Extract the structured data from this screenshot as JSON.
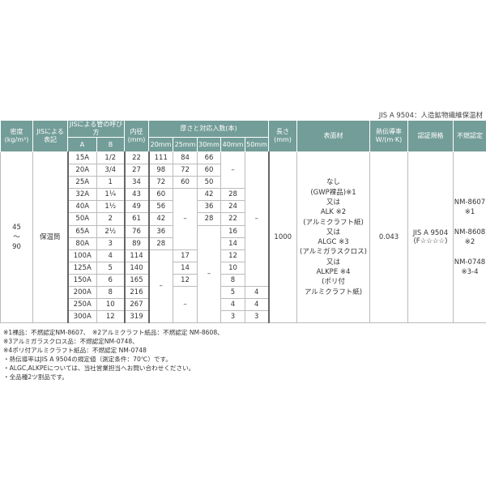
{
  "caption": "JIS A 9504：人造鉱物繊維保温材",
  "header": {
    "density": "密度\n(kg/m³)",
    "jis_label": "JISによる\n表記",
    "pipe_name": "JISによる管の呼び方",
    "col_a": "A",
    "col_b": "B",
    "inner_dia": "内径\n(mm)",
    "thickness": "厚さと対応入数(本)",
    "thicknesses": [
      "20mm",
      "25mm",
      "30mm",
      "40mm",
      "50mm"
    ],
    "length": "長さ\n(mm)",
    "surface": "表面材",
    "conductivity": "熱伝導率\nW/(m·K)",
    "certification": "認証規格",
    "nonflammable": "不燃認定"
  },
  "rows": [
    [
      {
        "t": "45\n〜\n90",
        "rs": 14,
        "big": true
      },
      {
        "t": "保温筒",
        "rs": 14
      },
      {
        "t": "15A",
        "k": 1
      },
      {
        "t": "1/2"
      },
      {
        "t": "22",
        "k": 1
      },
      {
        "t": "111",
        "k": 1
      },
      {
        "t": "84"
      },
      {
        "t": "66"
      },
      {
        "t": "–",
        "rs": 3
      },
      {
        "t": "–",
        "rs": 11
      },
      {
        "t": "1000",
        "rs": 14,
        "k": 1
      },
      {
        "t": "なし\n(GWP裸品)※1\n又は\nALK ※2\n(アルミクラフト紙)\n又は\nALGC ※3\n(アルミガラスクロス)\n又は\nALKPE ※4\n(ポリ付\nアルミクラフト紙)",
        "rs": 14,
        "big": true
      },
      {
        "t": "0.043",
        "rs": 14
      },
      {
        "t": "JIS A 9504\n(F☆☆☆☆)",
        "rs": 14
      },
      {
        "t": "NM-8607\n※1\n\nNM-8608\n※2\n\nNM-0748\n※3-4",
        "rs": 14,
        "big": true
      }
    ],
    [
      {
        "t": "20A",
        "k": 1
      },
      {
        "t": "3/4"
      },
      {
        "t": "27",
        "k": 1
      },
      {
        "t": "98",
        "k": 1
      },
      {
        "t": "72"
      },
      {
        "t": "60"
      }
    ],
    [
      {
        "t": "25A",
        "k": 1
      },
      {
        "t": "1"
      },
      {
        "t": "34",
        "k": 1
      },
      {
        "t": "72",
        "k": 1
      },
      {
        "t": "60"
      },
      {
        "t": "50"
      }
    ],
    [
      {
        "t": "32A",
        "k": 1
      },
      {
        "t": "1¼"
      },
      {
        "t": "43",
        "k": 1
      },
      {
        "t": "60",
        "k": 1
      },
      {
        "t": "–",
        "rs": 5
      },
      {
        "t": "42"
      },
      {
        "t": "28"
      }
    ],
    [
      {
        "t": "40A",
        "k": 1
      },
      {
        "t": "1½"
      },
      {
        "t": "49",
        "k": 1
      },
      {
        "t": "56",
        "k": 1
      },
      {
        "t": "36"
      },
      {
        "t": "24"
      }
    ],
    [
      {
        "t": "50A",
        "k": 1
      },
      {
        "t": "2"
      },
      {
        "t": "61",
        "k": 1
      },
      {
        "t": "42",
        "k": 1
      },
      {
        "t": "28"
      },
      {
        "t": "22"
      }
    ],
    [
      {
        "t": "65A",
        "k": 1
      },
      {
        "t": "2½"
      },
      {
        "t": "76",
        "k": 1
      },
      {
        "t": "36",
        "k": 1
      },
      {
        "t": "–",
        "rs": 8
      },
      {
        "t": "16"
      }
    ],
    [
      {
        "t": "80A",
        "k": 1
      },
      {
        "t": "3"
      },
      {
        "t": "89",
        "k": 1
      },
      {
        "t": "28",
        "k": 1
      },
      {
        "t": "14"
      }
    ],
    [
      {
        "t": "100A",
        "k": 1
      },
      {
        "t": "4"
      },
      {
        "t": "114",
        "k": 1
      },
      {
        "t": "–",
        "rs": 6,
        "k": 1
      },
      {
        "t": "17"
      },
      {
        "t": "12"
      }
    ],
    [
      {
        "t": "125A",
        "k": 1
      },
      {
        "t": "5"
      },
      {
        "t": "140",
        "k": 1
      },
      {
        "t": "14"
      },
      {
        "t": "10"
      }
    ],
    [
      {
        "t": "150A",
        "k": 1
      },
      {
        "t": "6"
      },
      {
        "t": "165",
        "k": 1
      },
      {
        "t": "12"
      },
      {
        "t": "8"
      }
    ],
    [
      {
        "t": "200A",
        "k": 1
      },
      {
        "t": "8"
      },
      {
        "t": "216",
        "k": 1
      },
      {
        "t": "–",
        "rs": 3
      },
      {
        "t": "5"
      },
      {
        "t": "4"
      }
    ],
    [
      {
        "t": "250A",
        "k": 1
      },
      {
        "t": "10"
      },
      {
        "t": "267",
        "k": 1
      },
      {
        "t": "4"
      },
      {
        "t": "4"
      }
    ],
    [
      {
        "t": "300A",
        "k": 1
      },
      {
        "t": "12"
      },
      {
        "t": "319",
        "k": 1
      },
      {
        "t": "3"
      },
      {
        "t": "3"
      }
    ]
  ],
  "notes": [
    "※1裸品：不燃認定NM-8607、　※2アルミクラフト紙品：不燃認定 NM-8608、",
    "※3アルミガラスクロス品：不燃認定NM-0748、",
    "※4ポリ付アルミクラフト紙品：不燃認定 NM-0748",
    "・熱伝導率はJIS A 9504の規定値（測定条件：70℃）です。",
    "・ALGC,ALKPEについては、当社営業担当へお問い合わせください。",
    "・全品種2ツ割品です。"
  ]
}
